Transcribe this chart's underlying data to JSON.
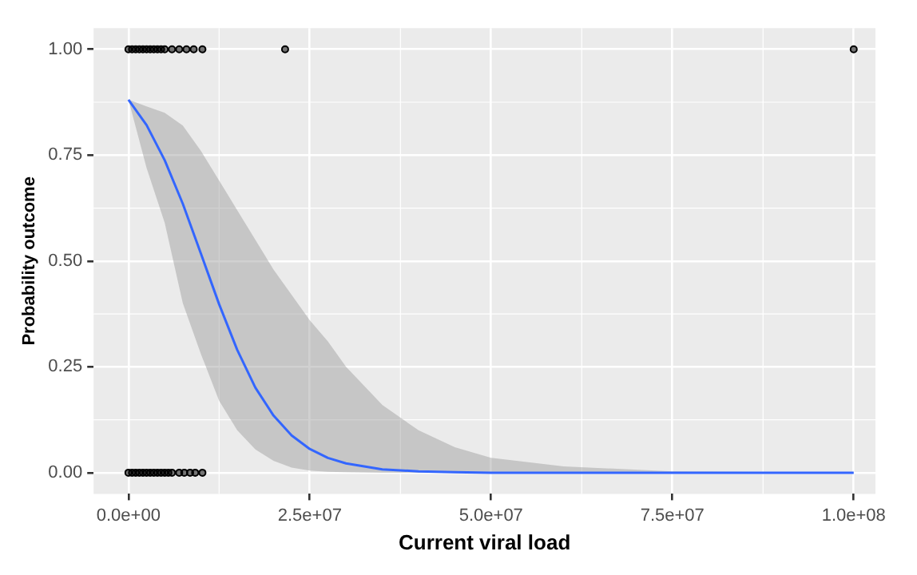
{
  "chart_data": {
    "type": "line",
    "xlabel": "Current viral load",
    "ylabel": "Probability outcome",
    "xlim": [
      -4800000,
      103000000
    ],
    "ylim": [
      -0.05,
      1.05
    ],
    "xticks": [
      {
        "value": 0,
        "label": "0.0e+00"
      },
      {
        "value": 25000000,
        "label": "2.5e+07"
      },
      {
        "value": 50000000,
        "label": "5.0e+07"
      },
      {
        "value": 75000000,
        "label": "7.5e+07"
      },
      {
        "value": 100000000,
        "label": "1.0e+08"
      }
    ],
    "yticks": [
      {
        "value": 0,
        "label": "0.00"
      },
      {
        "value": 0.25,
        "label": "0.25"
      },
      {
        "value": 0.5,
        "label": "0.50"
      },
      {
        "value": 0.75,
        "label": "0.75"
      },
      {
        "value": 1,
        "label": "1.00"
      }
    ],
    "grid": true,
    "legend": false,
    "series": [
      {
        "type": "scatter",
        "marker": "circle",
        "color": "#000000",
        "x": [
          0,
          500000,
          1000000,
          1500000,
          2000000,
          2500000,
          3000000,
          3500000,
          4000000,
          4500000,
          5000000,
          6000000,
          7000000,
          8000000,
          9000000,
          10200000,
          21600000,
          100000000,
          0,
          500000,
          1000000,
          1500000,
          2000000,
          2500000,
          3000000,
          3500000,
          4000000,
          4500000,
          5000000,
          5500000,
          6000000,
          7000000,
          7700000,
          8500000,
          9200000,
          10200000
        ],
        "values": [
          1,
          1,
          1,
          1,
          1,
          1,
          1,
          1,
          1,
          1,
          1,
          1,
          1,
          1,
          1,
          1,
          1,
          1,
          0,
          0,
          0,
          0,
          0,
          0,
          0,
          0,
          0,
          0,
          0,
          0,
          0,
          0,
          0,
          0,
          0,
          0
        ]
      },
      {
        "marker": "none",
        "color": "#3366ff",
        "x": [
          0,
          2500000,
          5000000,
          7500000,
          10000000,
          12500000,
          15000000,
          17500000,
          20000000,
          22500000,
          25000000,
          27500000,
          30000000,
          35000000,
          40000000,
          45000000,
          50000000,
          60000000,
          75000000,
          100000000
        ],
        "values": [
          0.881,
          0.821,
          0.738,
          0.635,
          0.517,
          0.398,
          0.29,
          0.201,
          0.135,
          0.088,
          0.056,
          0.035,
          0.022,
          0.008,
          0.003,
          0.001,
          0,
          0,
          0,
          0
        ],
        "lower": [
          0.881,
          0.72,
          0.59,
          0.4,
          0.28,
          0.17,
          0.1,
          0.055,
          0.028,
          0.012,
          0.005,
          0.002,
          0.001,
          0,
          0,
          0,
          0,
          0,
          0,
          0
        ],
        "upper": [
          0.881,
          0.865,
          0.85,
          0.82,
          0.76,
          0.69,
          0.62,
          0.55,
          0.48,
          0.42,
          0.36,
          0.31,
          0.25,
          0.16,
          0.1,
          0.06,
          0.035,
          0.015,
          0.003,
          0
        ]
      }
    ]
  }
}
